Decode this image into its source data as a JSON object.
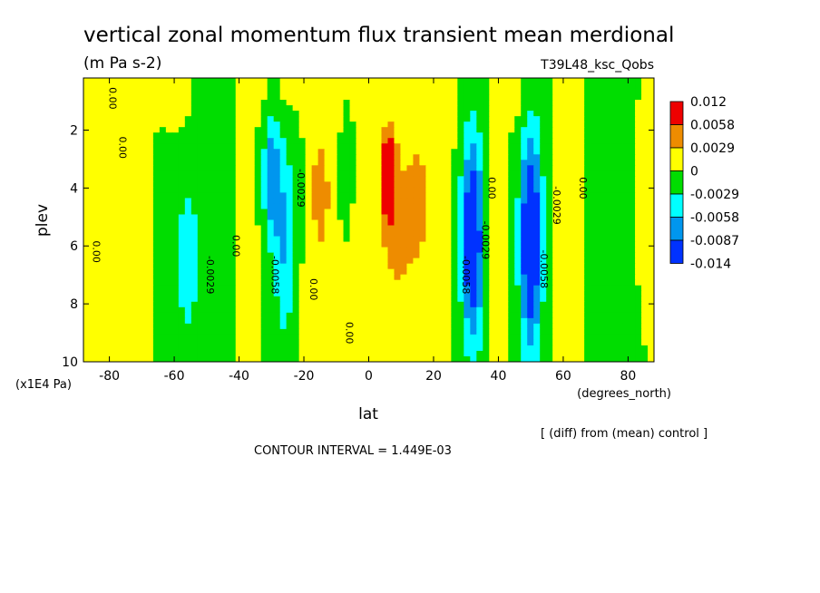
{
  "chart_data": {
    "type": "heatmap",
    "title": "vertical zonal momentum flux transient mean merdional",
    "units": "(m Pa s-2)",
    "run_label": "T39L48_ksc_Qobs",
    "xlabel": "lat",
    "x_units": "(degrees_north)",
    "ylabel": "plev",
    "y_units": "(x1E4 Pa)",
    "xlim": [
      -88,
      88
    ],
    "ylim": [
      10,
      0.2
    ],
    "x_ticks": [
      -80,
      -60,
      -40,
      -20,
      0,
      20,
      40,
      60,
      80
    ],
    "x_tick_labels": [
      "-80",
      "-60",
      "-40",
      "-20",
      "0",
      "20",
      "40",
      "60",
      "80"
    ],
    "y_ticks": [
      2,
      4,
      6,
      8,
      10
    ],
    "y_tick_labels": [
      "2",
      "4",
      "6",
      "8",
      "10"
    ],
    "note": "[ (diff) from (mean) control ]",
    "contour_interval": "CONTOUR INTERVAL = 1.449E-03",
    "legend": {
      "labels": [
        "0.012",
        "0.0058",
        "0.0029",
        "0",
        "-0.0029",
        "-0.0058",
        "-0.0087",
        "-0.014"
      ],
      "colors": [
        "#ee0000",
        "#ee8c00",
        "#ffff00",
        "#00dd00",
        "#00ffff",
        "#0096ee",
        "#0032ff"
      ]
    },
    "anomalies": [
      {
        "lat": -88,
        "plev": 5.5,
        "value": 0.0015,
        "wlat": 3,
        "wp": 5
      },
      {
        "lat": -76,
        "plev": 5.5,
        "value": 0.002,
        "wlat": 4,
        "wp": 7
      },
      {
        "lat": -56,
        "plev": 6.5,
        "value": -0.0042,
        "wlat": 4,
        "wp": 3.4
      },
      {
        "lat": -47,
        "plev": 5.0,
        "value": -0.0014,
        "wlat": 6,
        "wp": 5
      },
      {
        "lat": -38,
        "plev": 6.0,
        "value": 0.0015,
        "wlat": 3,
        "wp": 5
      },
      {
        "lat": -30,
        "plev": 3.6,
        "value": -0.008,
        "wlat": 2.5,
        "wp": 2.2
      },
      {
        "lat": -26,
        "plev": 5.8,
        "value": -0.006,
        "wlat": 3.3,
        "wp": 3.6
      },
      {
        "lat": -15,
        "plev": 4.0,
        "value": 0.004,
        "wlat": 2.5,
        "wp": 1.6
      },
      {
        "lat": -14,
        "plev": 6.5,
        "value": 0.002,
        "wlat": 5,
        "wp": 4
      },
      {
        "lat": -7,
        "plev": 4.0,
        "value": -0.0025,
        "wlat": 2,
        "wp": 1.5
      },
      {
        "lat": -3,
        "plev": 7.0,
        "value": 0.0018,
        "wlat": 3,
        "wp": 3
      },
      {
        "lat": 6,
        "plev": 3.5,
        "value": 0.009,
        "wlat": 2.2,
        "wp": 1.5
      },
      {
        "lat": 8,
        "plev": 5.2,
        "value": 0.004,
        "wlat": 5,
        "wp": 2.8
      },
      {
        "lat": 15,
        "plev": 4.2,
        "value": 0.004,
        "wlat": 3,
        "wp": 1.5
      },
      {
        "lat": 16,
        "plev": 7.0,
        "value": 0.002,
        "wlat": 6,
        "wp": 4
      },
      {
        "lat": 24,
        "plev": 4.0,
        "value": 0.002,
        "wlat": 2,
        "wp": 3
      },
      {
        "lat": 32,
        "plev": 5.8,
        "value": -0.0135,
        "wlat": 3.4,
        "wp": 3.6
      },
      {
        "lat": 40,
        "plev": 6.0,
        "value": 0.0022,
        "wlat": 2.5,
        "wp": 4
      },
      {
        "lat": 50,
        "plev": 5.8,
        "value": -0.014,
        "wlat": 3.4,
        "wp": 3.8
      },
      {
        "lat": 62,
        "plev": 5.0,
        "value": 0.002,
        "wlat": 3,
        "wp": 4
      },
      {
        "lat": 73,
        "plev": 4.6,
        "value": -0.0012,
        "wlat": 5,
        "wp": 5
      },
      {
        "lat": 86,
        "plev": 4.2,
        "value": 0.0015,
        "wlat": 2,
        "wp": 2
      },
      {
        "lat": 10,
        "plev": 0.8,
        "value": 0.0015,
        "wlat": 4,
        "wp": 0.8
      },
      {
        "lat": -28,
        "plev": 0.8,
        "value": 0.0012,
        "wlat": 8,
        "wp": 0.8
      },
      {
        "lat": -58,
        "plev": 1.2,
        "value": 0.0012,
        "wlat": 3,
        "wp": 0.9
      },
      {
        "lat": 47,
        "plev": 1.1,
        "value": 0.0012,
        "wlat": 3,
        "wp": 0.9
      }
    ],
    "contour_labels": [
      {
        "lat": -80,
        "plev": 0.9,
        "text": "0.00"
      },
      {
        "lat": -77,
        "plev": 2.6,
        "text": "0.00"
      },
      {
        "lat": -85,
        "plev": 6.2,
        "text": "0.00"
      },
      {
        "lat": -50,
        "plev": 7.0,
        "text": "-0.0029"
      },
      {
        "lat": -42,
        "plev": 6.0,
        "text": "0.00"
      },
      {
        "lat": -30,
        "plev": 7.0,
        "text": "-0.0058"
      },
      {
        "lat": -22,
        "plev": 4.0,
        "text": "-0.0029"
      },
      {
        "lat": -18,
        "plev": 7.5,
        "text": "0.00"
      },
      {
        "lat": -7,
        "plev": 9.0,
        "text": "0.00"
      },
      {
        "lat": 29,
        "plev": 7.0,
        "text": "-0.0058"
      },
      {
        "lat": 35,
        "plev": 5.8,
        "text": "-0.0029"
      },
      {
        "lat": 37,
        "plev": 4.0,
        "text": "0.00"
      },
      {
        "lat": 53,
        "plev": 6.8,
        "text": "-0.0058"
      },
      {
        "lat": 57,
        "plev": 4.6,
        "text": "-0.0029"
      },
      {
        "lat": 65,
        "plev": 4.0,
        "text": "0.00"
      }
    ]
  }
}
